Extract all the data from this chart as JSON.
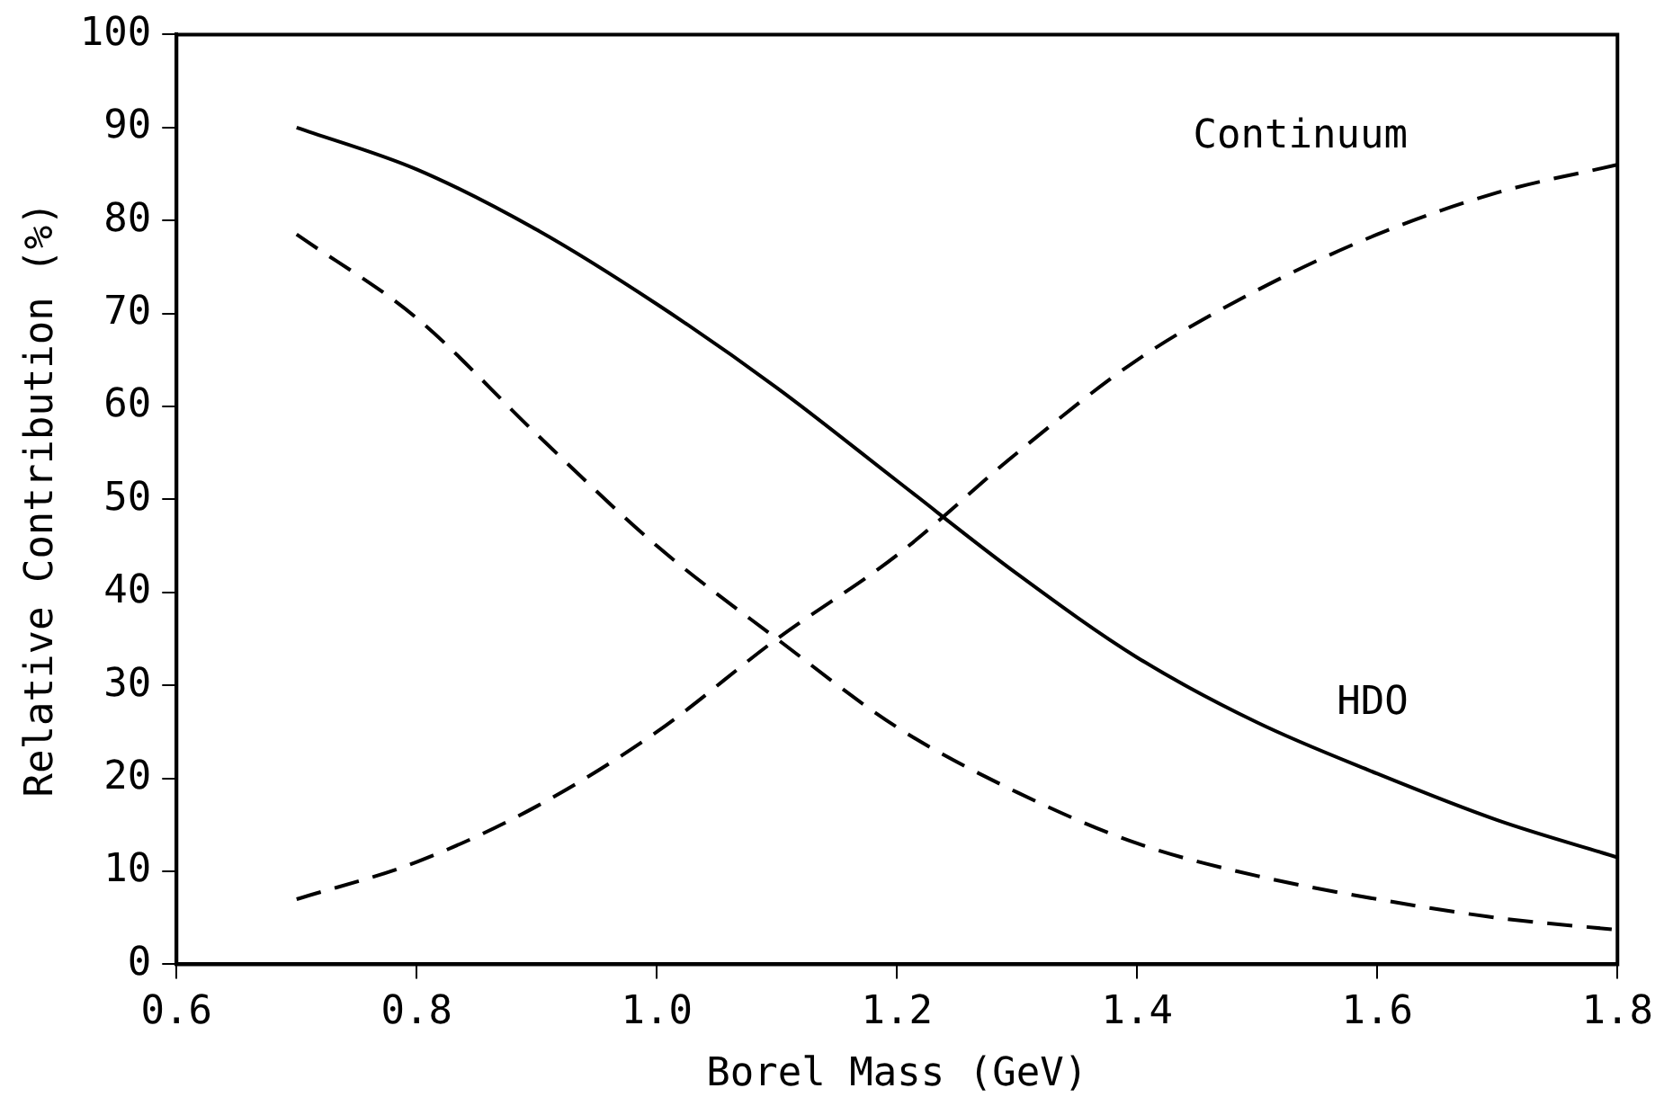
{
  "chart_data": {
    "type": "line",
    "xlabel": "Borel Mass (GeV)",
    "ylabel": "Relative Contribution (%)",
    "x": [
      0.7,
      0.8,
      0.9,
      1.0,
      1.1,
      1.2,
      1.3,
      1.4,
      1.5,
      1.6,
      1.7,
      1.8
    ],
    "series": [
      {
        "color": "#000000",
        "line_style": "solid",
        "values": [
          90,
          85.5,
          79,
          71,
          62,
          52,
          42,
          33,
          26,
          20.5,
          15.5,
          11.5
        ]
      },
      {
        "color": "#000000",
        "line_style": "dashed",
        "values": [
          78.5,
          69.5,
          57,
          45,
          35,
          25.5,
          18.5,
          13,
          9.5,
          7,
          5,
          3.7
        ]
      },
      {
        "color": "#000000",
        "line_style": "dashed",
        "values": [
          7,
          11,
          17,
          25,
          35,
          44,
          55,
          65,
          72.5,
          78.5,
          83,
          86
        ]
      }
    ],
    "xlim": [
      0.6,
      1.8
    ],
    "xticks": [
      {
        "value": 0.6,
        "label": "0.6"
      },
      {
        "value": 0.8,
        "label": "0.8"
      },
      {
        "value": 1.0,
        "label": "1.0"
      },
      {
        "value": 1.2,
        "label": "1.2"
      },
      {
        "value": 1.4,
        "label": "1.4"
      },
      {
        "value": 1.6,
        "label": "1.6"
      },
      {
        "value": 1.8,
        "label": "1.8"
      }
    ],
    "ylim": [
      0,
      100
    ],
    "yticks": [
      0,
      10,
      20,
      30,
      40,
      50,
      60,
      70,
      80,
      90,
      100
    ],
    "grid": false,
    "legend": false,
    "marker": "none",
    "annotations": [
      "Continuum",
      "HDO"
    ]
  }
}
